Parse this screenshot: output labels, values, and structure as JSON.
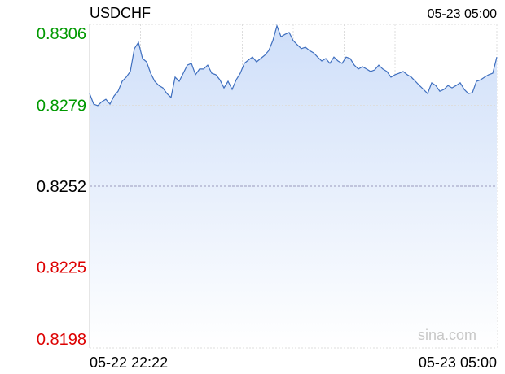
{
  "chart_data": {
    "type": "line",
    "title": "USDCHF",
    "header_time": "05-23 05:00",
    "watermark": "sina.com",
    "x_labels": [
      "05-22 22:22",
      "05-23 05:00"
    ],
    "color": "#3f6fbf",
    "fill_color": "#d6e4fb",
    "ylim": [
      0.8198,
      0.8306
    ],
    "yticks": [
      0.8198,
      0.8225,
      0.8252,
      0.8279,
      0.8306
    ],
    "ytick_colors": [
      "#dd0000",
      "#dd0000",
      "#000000",
      "#009900",
      "#009900"
    ],
    "grid": true,
    "values": [
      0.82829,
      0.82794,
      0.82789,
      0.82802,
      0.8281,
      0.82794,
      0.82821,
      0.82837,
      0.8287,
      0.82884,
      0.82903,
      0.82979,
      0.83,
      0.82946,
      0.82935,
      0.82897,
      0.8287,
      0.82856,
      0.82848,
      0.82829,
      0.82816,
      0.82884,
      0.8287,
      0.82897,
      0.82924,
      0.8293,
      0.82892,
      0.82911,
      0.82911,
      0.82924,
      0.82897,
      0.82892,
      0.82875,
      0.82848,
      0.8287,
      0.82843,
      0.82875,
      0.82897,
      0.8293,
      0.82941,
      0.82951,
      0.82935,
      0.82946,
      0.82957,
      0.82973,
      0.83006,
      0.83055,
      0.83019,
      0.83027,
      0.83033,
      0.83006,
      0.82992,
      0.82979,
      0.82984,
      0.82973,
      0.82965,
      0.82951,
      0.82938,
      0.82946,
      0.8293,
      0.82951,
      0.82938,
      0.8293,
      0.82951,
      0.82946,
      0.82924,
      0.82911,
      0.82919,
      0.82911,
      0.82903,
      0.82908,
      0.82924,
      0.82911,
      0.82903,
      0.82884,
      0.82892,
      0.82897,
      0.82903,
      0.82892,
      0.82884,
      0.8287,
      0.82856,
      0.82843,
      0.82829,
      0.82865,
      0.82856,
      0.82837,
      0.82843,
      0.82856,
      0.82848,
      0.82856,
      0.82865,
      0.82843,
      0.82829,
      0.82832,
      0.8287,
      0.82875,
      0.82884,
      0.82892,
      0.82897,
      0.82951
    ]
  }
}
